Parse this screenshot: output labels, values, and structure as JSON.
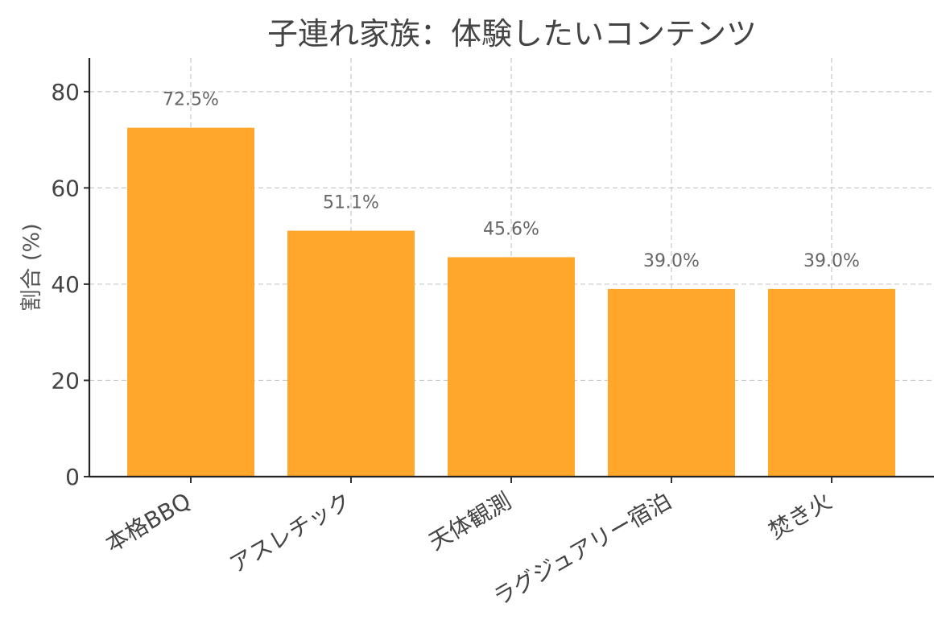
{
  "chart_data": {
    "type": "bar",
    "title": "子連れ家族：体験したいコンテンツ",
    "xlabel": "",
    "ylabel": "割合 (%)",
    "categories": [
      "本格BBQ",
      "アスレチック",
      "天体観測",
      "ラグジュアリー宿泊",
      "焚き火"
    ],
    "values": [
      72.5,
      51.1,
      45.6,
      39.0,
      39.0
    ],
    "data_labels": [
      "72.5%",
      "51.1%",
      "45.6%",
      "39.0%",
      "39.0%"
    ],
    "ylim": [
      0,
      87
    ],
    "yticks": [
      0,
      20,
      40,
      60,
      80
    ],
    "grid": true,
    "bar_color": "#FFA62B",
    "legend": "none"
  }
}
